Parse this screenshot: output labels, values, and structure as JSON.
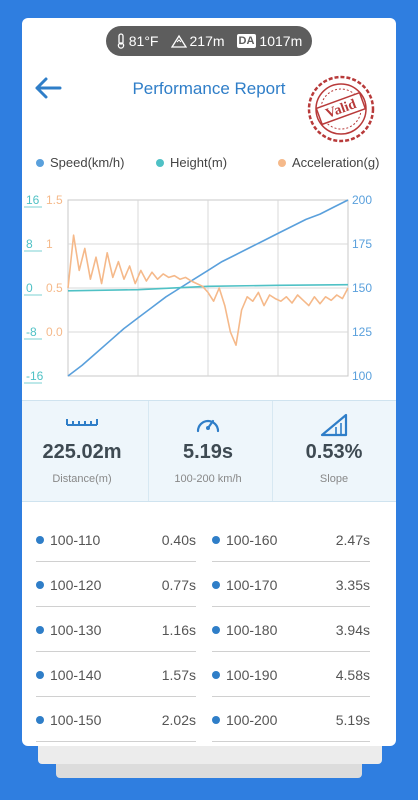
{
  "status": {
    "temperature": "81°F",
    "altitude": "217m",
    "da_label": "DA",
    "density_altitude": "1017m"
  },
  "header": {
    "title": "Performance Report",
    "stamp_text": "Valid"
  },
  "legend": [
    {
      "label": "Speed(km/h)",
      "color": "#5aa0dc"
    },
    {
      "label": "Height(m)",
      "color": "#4fc1c5"
    },
    {
      "label": "Acceleration(g)",
      "color": "#f5b98a"
    }
  ],
  "chart_data": {
    "type": "line",
    "x": [
      0,
      0.25,
      0.5,
      0.75,
      1.0
    ],
    "left_axis_height": {
      "ticks": [
        "16",
        "8",
        "0",
        "-8",
        "-16"
      ],
      "color": "#4fc1c5",
      "ylim": [
        -16,
        16
      ]
    },
    "left_axis_accel": {
      "ticks": [
        "1.5",
        "1",
        "0.5",
        "0.0"
      ],
      "color": "#f5b98a",
      "ylim": [
        -0.5,
        1.5
      ]
    },
    "right_axis_speed": {
      "ticks": [
        "200",
        "175",
        "150",
        "125",
        "100"
      ],
      "color": "#5aa0dc",
      "ylim": [
        100,
        200
      ]
    },
    "series": [
      {
        "name": "Speed(km/h)",
        "axis": "speed",
        "values": [
          [
            0,
            100
          ],
          [
            0.05,
            106
          ],
          [
            0.1,
            113
          ],
          [
            0.15,
            120
          ],
          [
            0.2,
            127
          ],
          [
            0.25,
            133
          ],
          [
            0.3,
            139
          ],
          [
            0.35,
            145
          ],
          [
            0.4,
            150
          ],
          [
            0.45,
            155
          ],
          [
            0.5,
            160
          ],
          [
            0.55,
            165
          ],
          [
            0.6,
            169
          ],
          [
            0.65,
            173
          ],
          [
            0.7,
            177
          ],
          [
            0.75,
            181
          ],
          [
            0.8,
            185
          ],
          [
            0.85,
            189
          ],
          [
            0.9,
            192
          ],
          [
            0.95,
            196
          ],
          [
            1.0,
            200
          ]
        ]
      },
      {
        "name": "Height(m)",
        "axis": "height",
        "values": [
          [
            0,
            -0.5
          ],
          [
            0.25,
            -0.3
          ],
          [
            0.5,
            0.3
          ],
          [
            0.75,
            0.5
          ],
          [
            1.0,
            0.6
          ]
        ]
      },
      {
        "name": "Acceleration(g)",
        "axis": "accel",
        "values": [
          [
            0,
            0.5
          ],
          [
            0.02,
            1.1
          ],
          [
            0.04,
            0.7
          ],
          [
            0.06,
            0.95
          ],
          [
            0.08,
            0.6
          ],
          [
            0.1,
            0.85
          ],
          [
            0.12,
            0.55
          ],
          [
            0.14,
            0.9
          ],
          [
            0.16,
            0.62
          ],
          [
            0.18,
            0.8
          ],
          [
            0.2,
            0.6
          ],
          [
            0.22,
            0.75
          ],
          [
            0.24,
            0.55
          ],
          [
            0.26,
            0.7
          ],
          [
            0.28,
            0.58
          ],
          [
            0.3,
            0.68
          ],
          [
            0.32,
            0.6
          ],
          [
            0.34,
            0.66
          ],
          [
            0.36,
            0.62
          ],
          [
            0.38,
            0.64
          ],
          [
            0.4,
            0.6
          ],
          [
            0.42,
            0.62
          ],
          [
            0.44,
            0.58
          ],
          [
            0.46,
            0.55
          ],
          [
            0.48,
            0.52
          ],
          [
            0.5,
            0.45
          ],
          [
            0.52,
            0.35
          ],
          [
            0.54,
            0.5
          ],
          [
            0.56,
            0.3
          ],
          [
            0.58,
            0.0
          ],
          [
            0.6,
            -0.15
          ],
          [
            0.62,
            0.25
          ],
          [
            0.64,
            0.4
          ],
          [
            0.66,
            0.35
          ],
          [
            0.68,
            0.45
          ],
          [
            0.7,
            0.3
          ],
          [
            0.72,
            0.42
          ],
          [
            0.74,
            0.38
          ],
          [
            0.76,
            0.35
          ],
          [
            0.78,
            0.4
          ],
          [
            0.8,
            0.33
          ],
          [
            0.82,
            0.42
          ],
          [
            0.84,
            0.36
          ],
          [
            0.86,
            0.3
          ],
          [
            0.88,
            0.4
          ],
          [
            0.9,
            0.32
          ],
          [
            0.92,
            0.4
          ],
          [
            0.94,
            0.36
          ],
          [
            0.96,
            0.42
          ],
          [
            0.98,
            0.38
          ],
          [
            1.0,
            0.5
          ]
        ]
      }
    ]
  },
  "metrics": [
    {
      "value": "225.02m",
      "label": "Distance(m)",
      "icon": "ruler-icon"
    },
    {
      "value": "5.19s",
      "label": "100-200 km/h",
      "icon": "speedometer-icon"
    },
    {
      "value": "0.53%",
      "label": "Slope",
      "icon": "slope-icon"
    }
  ],
  "splits": [
    [
      {
        "range": "100-110",
        "time": "0.40s"
      },
      {
        "range": "100-160",
        "time": "2.47s"
      }
    ],
    [
      {
        "range": "100-120",
        "time": "0.77s"
      },
      {
        "range": "100-170",
        "time": "3.35s"
      }
    ],
    [
      {
        "range": "100-130",
        "time": "1.16s"
      },
      {
        "range": "100-180",
        "time": "3.94s"
      }
    ],
    [
      {
        "range": "100-140",
        "time": "1.57s"
      },
      {
        "range": "100-190",
        "time": "4.58s"
      }
    ],
    [
      {
        "range": "100-150",
        "time": "2.02s"
      },
      {
        "range": "100-200",
        "time": "5.19s"
      }
    ]
  ],
  "colors": {
    "accent": "#2f7ec8",
    "background": "#2f7ee0",
    "stamp": "#b83a3a"
  }
}
